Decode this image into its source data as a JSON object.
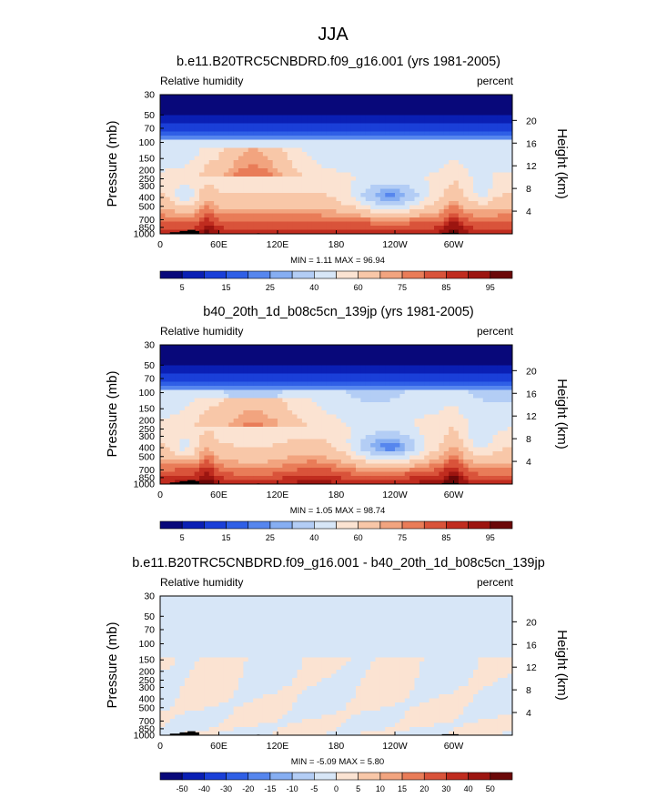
{
  "page": {
    "title": "JJA"
  },
  "colors": {
    "abs_levels": [
      "#08087a",
      "#0a1fb4",
      "#1a3fd8",
      "#2f5fe6",
      "#5686ee",
      "#86aef2",
      "#b3cdf5",
      "#d7e6f7",
      "#fbe3d2",
      "#f8c7a8",
      "#f2a47f",
      "#e97c58",
      "#d9533a",
      "#c02c1f",
      "#9c1510",
      "#6b0808"
    ],
    "diff_levels": [
      "#08087a",
      "#0a1fb4",
      "#1a3fd8",
      "#2f5fe6",
      "#5686ee",
      "#86aef2",
      "#b3cdf5",
      "#d7e6f7",
      "#fbe3d2",
      "#f8c7a8",
      "#f2a47f",
      "#e97c58",
      "#d9533a",
      "#c02c1f",
      "#9c1510",
      "#6b0808"
    ],
    "terrain": "#000000"
  },
  "chart_data": [
    {
      "type": "heatmap",
      "title": "b.e11.B20TRC5CNBDRD.f09_g16.001 (yrs 1981-2005)",
      "left_label": "Relative humidity",
      "right_label": "percent",
      "ylabel": "Pressure (mb)",
      "y2label": "Height (km)",
      "x_ticks": [
        "0",
        "60E",
        "120E",
        "180",
        "120W",
        "60W"
      ],
      "x_tick_lon": [
        0,
        60,
        120,
        180,
        240,
        300
      ],
      "xlim": [
        0,
        360
      ],
      "y_ticks": [
        "30",
        "50",
        "70",
        "100",
        "150",
        "200",
        "250",
        "300",
        "400",
        "500",
        "700",
        "850",
        "1000"
      ],
      "y_tick_p": [
        30,
        50,
        70,
        100,
        150,
        200,
        250,
        300,
        400,
        500,
        700,
        850,
        1000
      ],
      "ylim": [
        1000,
        30
      ],
      "height_ticks": [
        "20",
        "16",
        "12",
        "8",
        "4"
      ],
      "height_km": [
        20,
        16,
        12,
        8,
        4
      ],
      "stats": "MIN =   1.11  MAX =  96.94",
      "colorbar_labels": [
        "5",
        "15",
        "25",
        "40",
        "60",
        "75",
        "85",
        "95"
      ],
      "colorbar_levels": [
        5,
        10,
        15,
        20,
        25,
        30,
        40,
        50,
        60,
        70,
        75,
        80,
        85,
        90,
        95
      ],
      "field": "abs",
      "variant": 1
    },
    {
      "type": "heatmap",
      "title": "b40_20th_1d_b08c5cn_139jp (yrs 1981-2005)",
      "left_label": "Relative humidity",
      "right_label": "percent",
      "ylabel": "Pressure (mb)",
      "y2label": "Height (km)",
      "x_ticks": [
        "0",
        "60E",
        "120E",
        "180",
        "120W",
        "60W"
      ],
      "x_tick_lon": [
        0,
        60,
        120,
        180,
        240,
        300
      ],
      "xlim": [
        0,
        360
      ],
      "y_ticks": [
        "30",
        "50",
        "70",
        "100",
        "150",
        "200",
        "250",
        "300",
        "400",
        "500",
        "700",
        "850",
        "1000"
      ],
      "y_tick_p": [
        30,
        50,
        70,
        100,
        150,
        200,
        250,
        300,
        400,
        500,
        700,
        850,
        1000
      ],
      "ylim": [
        1000,
        30
      ],
      "height_ticks": [
        "20",
        "16",
        "12",
        "8",
        "4"
      ],
      "height_km": [
        20,
        16,
        12,
        8,
        4
      ],
      "stats": "MIN =   1.05  MAX =  98.74",
      "colorbar_labels": [
        "5",
        "15",
        "25",
        "40",
        "60",
        "75",
        "85",
        "95"
      ],
      "colorbar_levels": [
        5,
        10,
        15,
        20,
        25,
        30,
        40,
        50,
        60,
        70,
        75,
        80,
        85,
        90,
        95
      ],
      "field": "abs",
      "variant": 2
    },
    {
      "type": "heatmap",
      "title": "b.e11.B20TRC5CNBDRD.f09_g16.001 - b40_20th_1d_b08c5cn_139jp",
      "left_label": "Relative humidity",
      "right_label": "percent",
      "ylabel": "Pressure (mb)",
      "y2label": "Height (km)",
      "x_ticks": [
        "0",
        "60E",
        "120E",
        "180",
        "120W",
        "60W"
      ],
      "x_tick_lon": [
        0,
        60,
        120,
        180,
        240,
        300
      ],
      "xlim": [
        0,
        360
      ],
      "y_ticks": [
        "30",
        "50",
        "70",
        "100",
        "150",
        "200",
        "250",
        "300",
        "400",
        "500",
        "700",
        "850",
        "1000"
      ],
      "y_tick_p": [
        30,
        50,
        70,
        100,
        150,
        200,
        250,
        300,
        400,
        500,
        700,
        850,
        1000
      ],
      "ylim": [
        1000,
        30
      ],
      "height_ticks": [
        "20",
        "16",
        "12",
        "8",
        "4"
      ],
      "height_km": [
        20,
        16,
        12,
        8,
        4
      ],
      "stats": "MIN =  -5.09  MAX =   5.80",
      "colorbar_labels": [
        "-50",
        "-40",
        "-30",
        "-20",
        "-15",
        "-10",
        "-5",
        "0",
        "5",
        "10",
        "15",
        "20",
        "30",
        "40",
        "50"
      ],
      "colorbar_levels": [
        -50,
        -40,
        -30,
        -20,
        -15,
        -10,
        -5,
        0,
        5,
        10,
        15,
        20,
        30,
        40,
        50
      ],
      "field": "diff",
      "variant": 3
    }
  ]
}
